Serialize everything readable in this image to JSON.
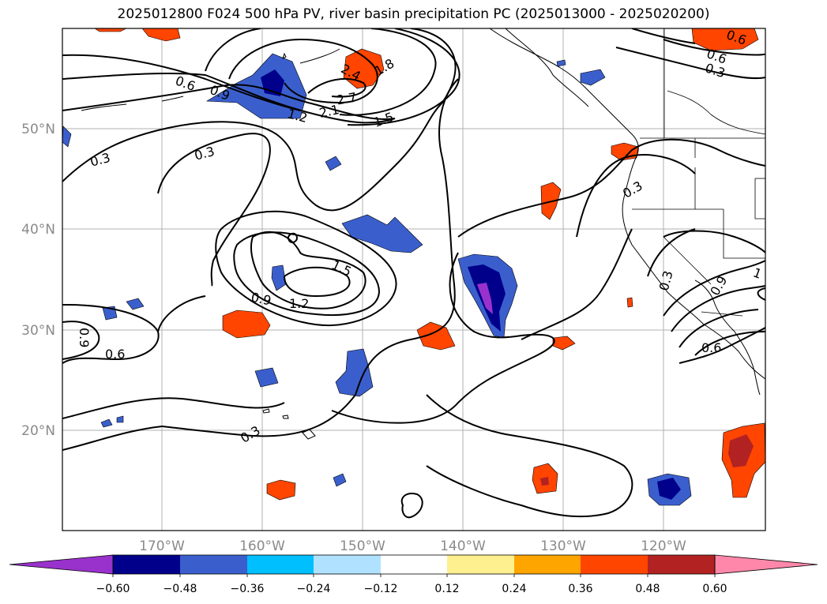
{
  "title": "2025012800 F024 500 hPa PV, river basin precipitation PC (2025013000 - 2025020200)",
  "map": {
    "lon_range": [
      -180,
      -110
    ],
    "lat_range": [
      10,
      60
    ],
    "lat_labels": [
      "50°N",
      "40°N",
      "30°N",
      "20°N"
    ],
    "lon_labels": [
      "170°W",
      "160°W",
      "150°W",
      "140°W",
      "130°W",
      "120°W"
    ],
    "contour_labels": [
      "0.6",
      "0.9",
      "1.2",
      "2.1",
      "2.7",
      "2.4",
      "1.8",
      "1.5",
      "0.3",
      "0.3",
      "1.5",
      "1.2",
      "0.9",
      "0.3",
      "0.6",
      "0.9",
      "0.3",
      "0.6",
      "0.3",
      "0.3",
      "0.9",
      "0.6",
      "0.6",
      "1",
      "0.6",
      "0.3"
    ]
  },
  "colorbar": {
    "extend": "both",
    "colors": [
      "#9932cc",
      "#00008b",
      "#3a5fcd",
      "#00bfff",
      "#b0e2ff",
      "#ffffff",
      "#fff08f",
      "#ffa500",
      "#ff4500",
      "#b22222",
      "#ff88aa"
    ],
    "ticks": [
      "−0.60",
      "−0.48",
      "−0.36",
      "−0.24",
      "−0.12",
      "0.12",
      "0.24",
      "0.36",
      "0.48",
      "0.60"
    ]
  },
  "icons": [
    "coastline",
    "state-borders"
  ]
}
